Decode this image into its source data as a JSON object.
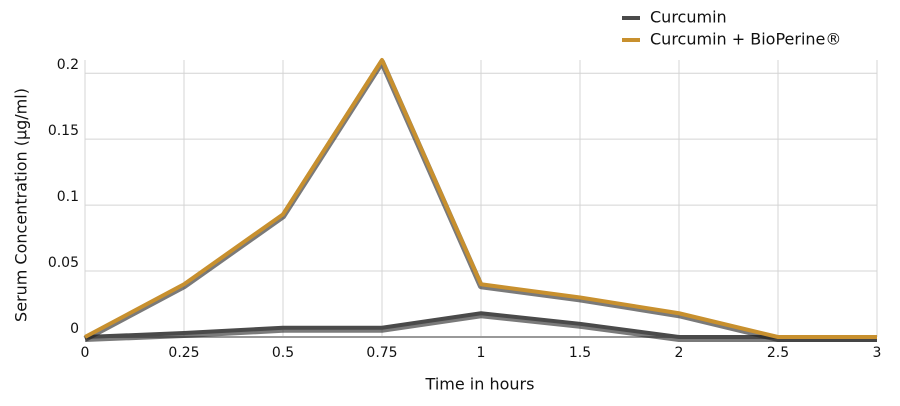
{
  "chart_data": {
    "type": "line",
    "x_label": "Time in hours",
    "y_label": "Serum Concentration (µg/ml)",
    "categories": [
      "0",
      "0.25",
      "0.5",
      "0.75",
      "1",
      "1.5",
      "2",
      "2.5",
      "3"
    ],
    "series": [
      {
        "name": "Curcumin",
        "color": "#4a4a4a",
        "values": [
          0,
          0.003,
          0.007,
          0.007,
          0.018,
          0.01,
          0,
          0,
          0
        ]
      },
      {
        "name": "Curcumin + BioPerine®",
        "color": "#c8902e",
        "values": [
          0,
          0.04,
          0.093,
          0.21,
          0.04,
          0.03,
          0.018,
          0,
          0
        ]
      }
    ],
    "ylim": [
      0,
      0.21
    ],
    "yticks": [
      0,
      0.05,
      0.1,
      0.15,
      0.2
    ],
    "grid": true,
    "legend": "top-right"
  }
}
